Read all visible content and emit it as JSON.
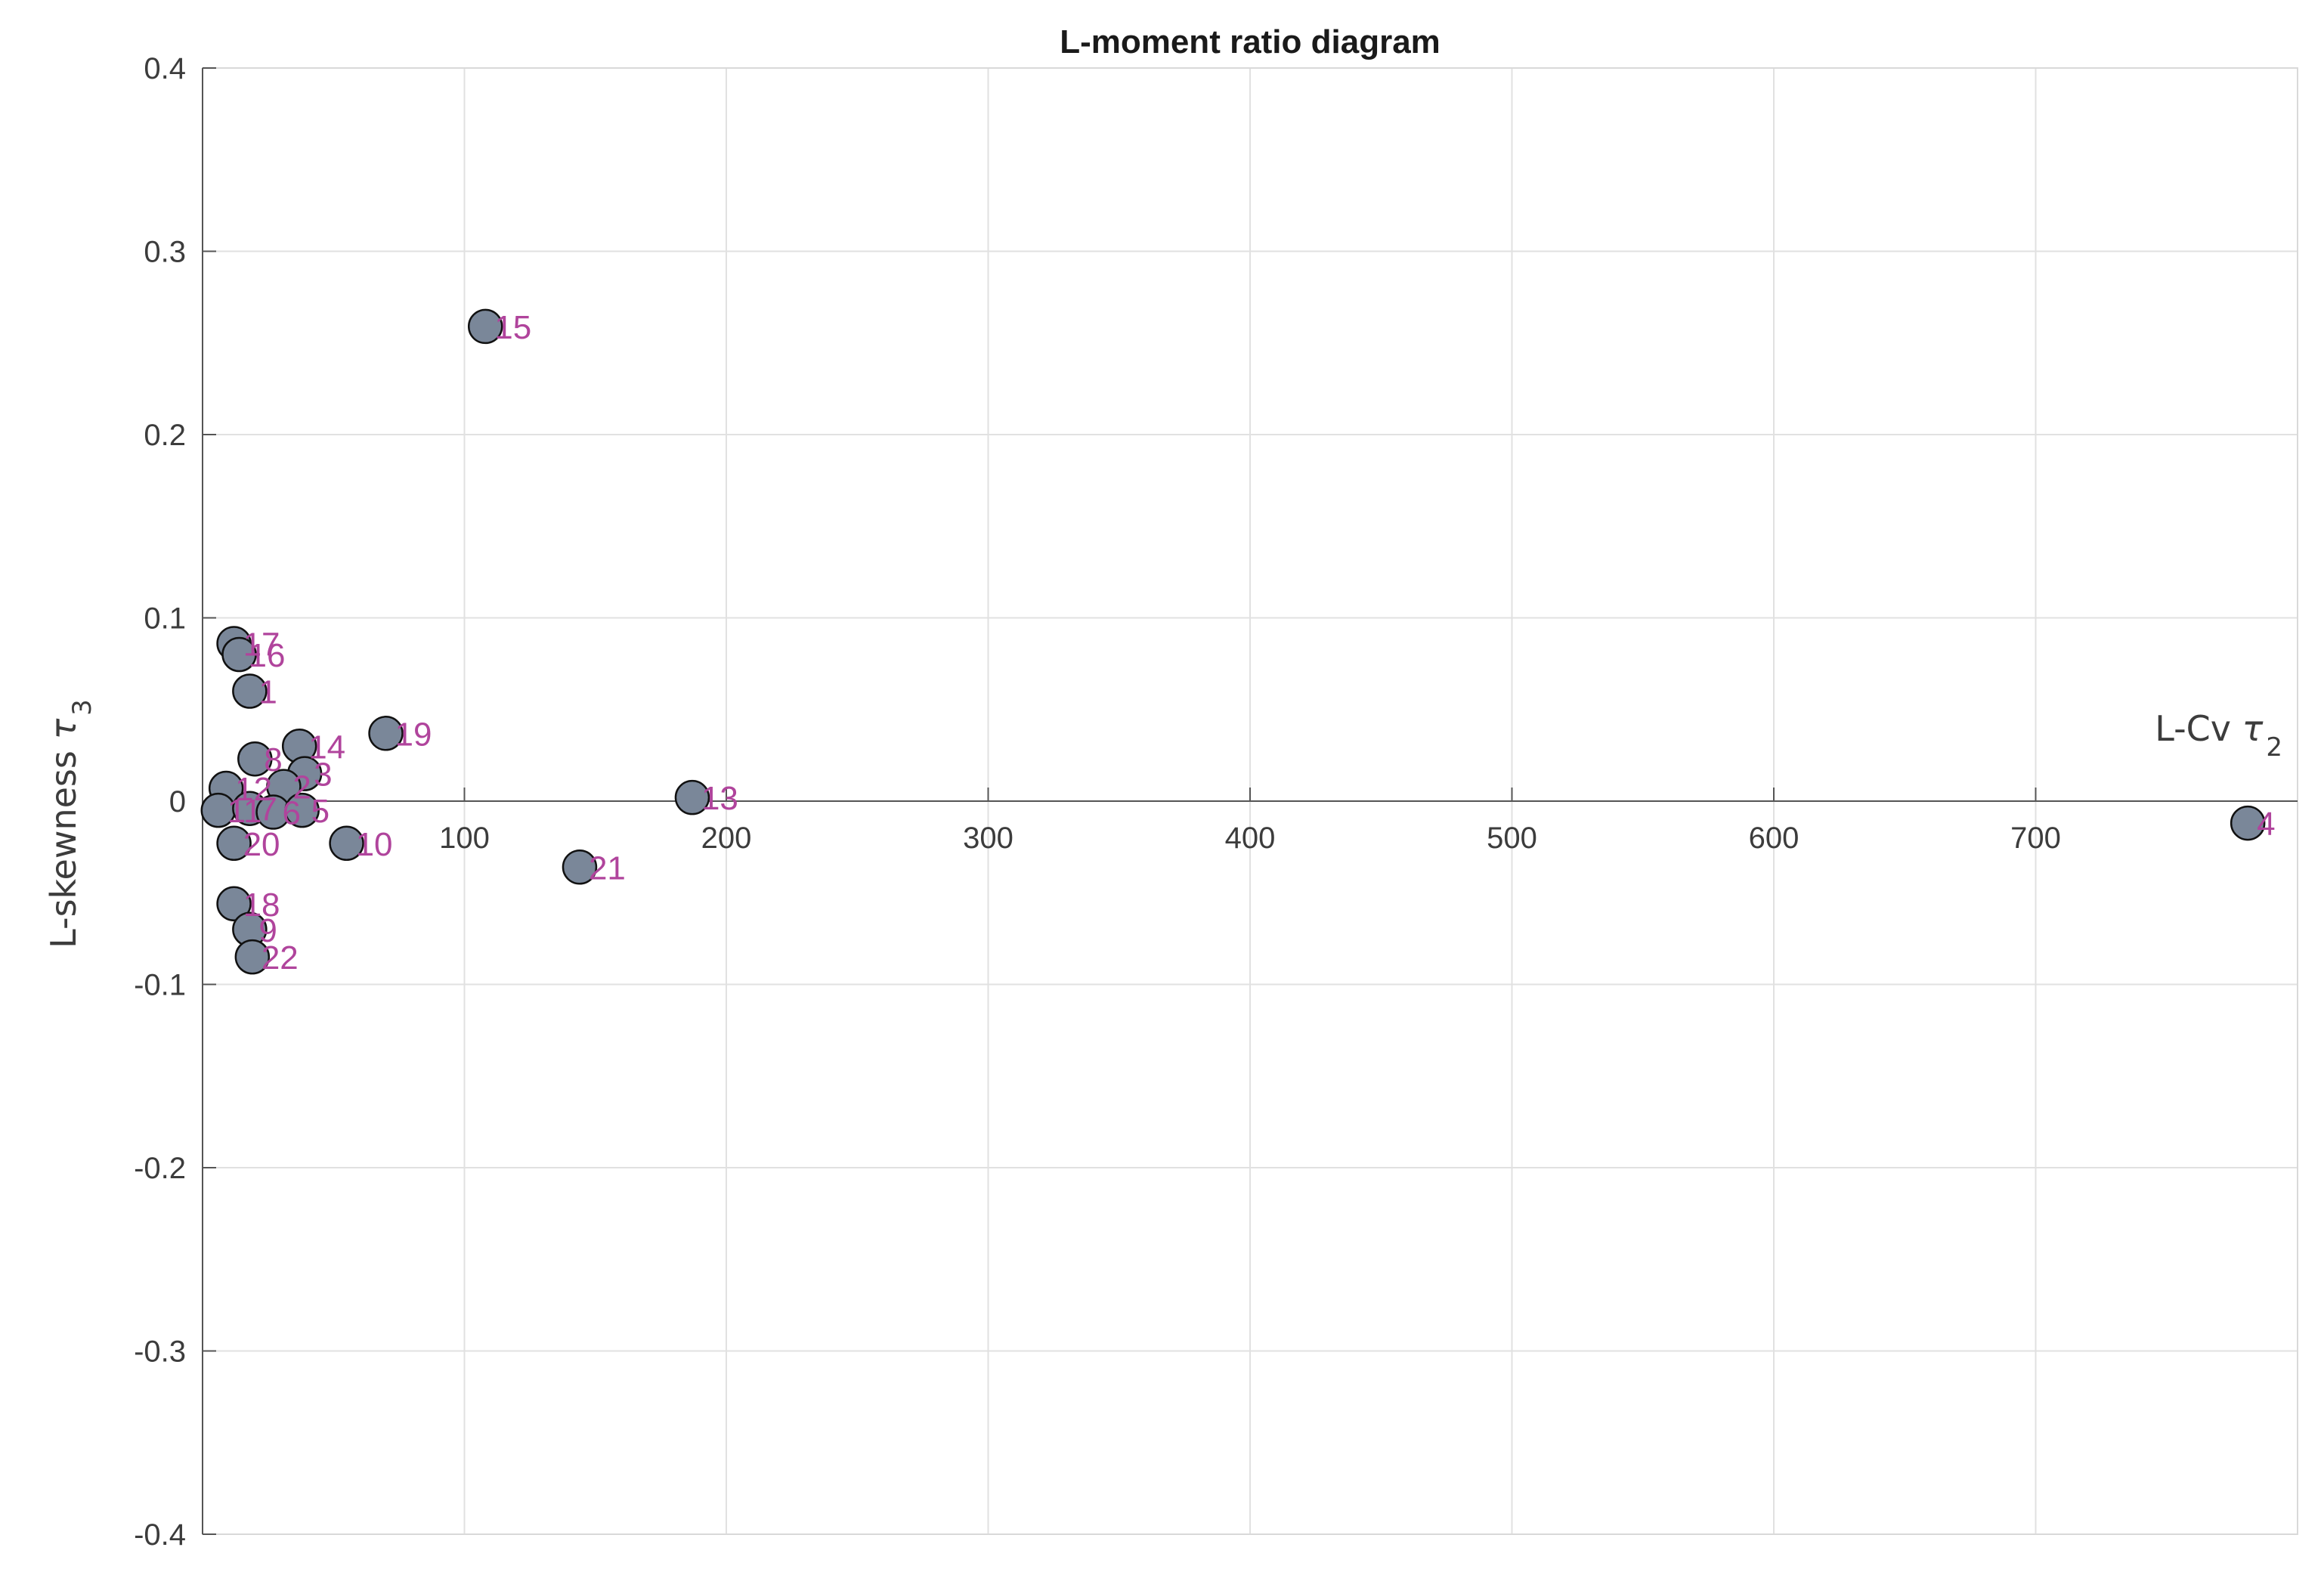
{
  "colors": {
    "marker_fill": "#7a8799",
    "marker_edge": "#111111",
    "label": "#b0449c",
    "grid": "#e1e1e1",
    "axis": "#555555",
    "text": "#3c3c3c"
  },
  "chart_data": {
    "type": "scatter",
    "title": "L-moment ratio diagram",
    "xlabel": {
      "main": "L-Cv ",
      "symbol": "τ",
      "sub": "2"
    },
    "ylabel": {
      "main": "L-skewness ",
      "symbol": "τ",
      "sub": "3"
    },
    "xlim": [
      0,
      800
    ],
    "ylim": [
      -0.4,
      0.4
    ],
    "grid": true,
    "x_axis_position": "y = 0",
    "x_ticks": [
      100,
      200,
      300,
      400,
      500,
      600,
      700
    ],
    "x_tick_labels": [
      "100",
      "200",
      "300",
      "400",
      "500",
      "600",
      "700"
    ],
    "y_ticks": [
      -0.4,
      -0.3,
      -0.2,
      -0.1,
      0,
      0.1,
      0.2,
      0.3,
      0.4
    ],
    "y_tick_labels": [
      "-0.4",
      "-0.3",
      "-0.2",
      "-0.1",
      "0",
      "0.1",
      "0.2",
      "0.3",
      "0.4"
    ],
    "points": [
      {
        "label": "15",
        "x": 108,
        "y": 0.259
      },
      {
        "label": "17",
        "x": 12,
        "y": 0.086
      },
      {
        "label": "16",
        "x": 14,
        "y": 0.08
      },
      {
        "label": "1",
        "x": 18,
        "y": 0.06
      },
      {
        "label": "19",
        "x": 70,
        "y": 0.037
      },
      {
        "label": "14",
        "x": 37,
        "y": 0.03
      },
      {
        "label": "8",
        "x": 20,
        "y": 0.023
      },
      {
        "label": "3",
        "x": 39,
        "y": 0.015
      },
      {
        "label": "2",
        "x": 31,
        "y": 0.008
      },
      {
        "label": "12",
        "x": 9,
        "y": 0.007
      },
      {
        "label": "13",
        "x": 187,
        "y": 0.002
      },
      {
        "label": "11",
        "x": 6,
        "y": -0.005
      },
      {
        "label": "7",
        "x": 18,
        "y": -0.004
      },
      {
        "label": "6",
        "x": 27,
        "y": -0.006
      },
      {
        "label": "5",
        "x": 38,
        "y": -0.005
      },
      {
        "label": "4",
        "x": 781,
        "y": -0.012
      },
      {
        "label": "10",
        "x": 55,
        "y": -0.023
      },
      {
        "label": "20",
        "x": 12,
        "y": -0.023
      },
      {
        "label": "21",
        "x": 144,
        "y": -0.036
      },
      {
        "label": "18",
        "x": 12,
        "y": -0.056
      },
      {
        "label": "9",
        "x": 18,
        "y": -0.07
      },
      {
        "label": "22",
        "x": 19,
        "y": -0.085
      }
    ]
  }
}
